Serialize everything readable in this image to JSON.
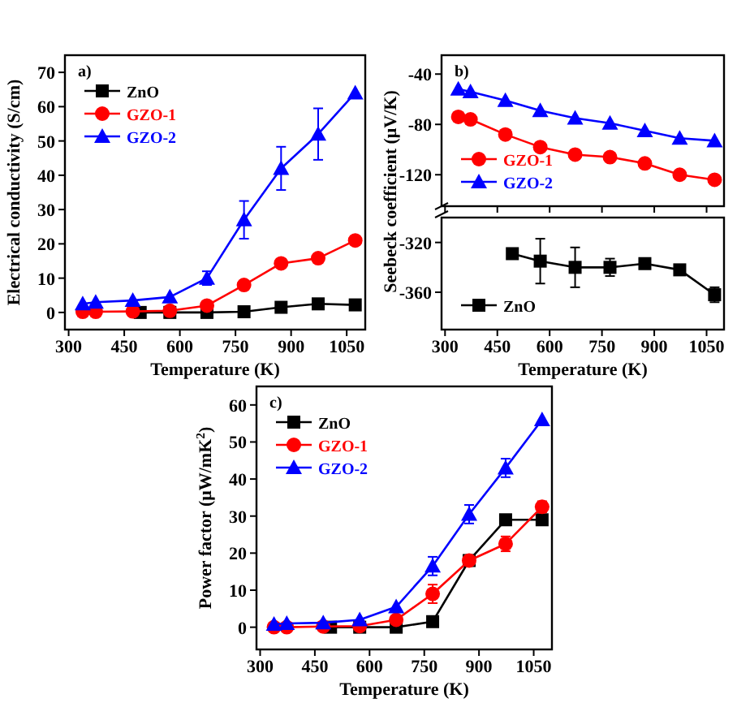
{
  "chart_data": [
    {
      "type": "line",
      "title": "a)",
      "xlabel": "Temperature (K)",
      "ylabel": "Electrical conductivity (S/cm)",
      "xlim": [
        290,
        1100
      ],
      "xticks": [
        300,
        450,
        600,
        750,
        900,
        1050
      ],
      "ylim": [
        -5,
        75
      ],
      "yticks": [
        0,
        10,
        20,
        30,
        40,
        50,
        60,
        70
      ],
      "legend": "top left",
      "series": [
        {
          "name": "ZnO",
          "color": "#000000",
          "marker": "square",
          "x": [
            493,
            573,
            673,
            773,
            873,
            973,
            1073
          ],
          "values": [
            0,
            0,
            0,
            0.2,
            1.5,
            2.5,
            2.2
          ]
        },
        {
          "name": "GZO-1",
          "color": "#ff0000",
          "marker": "circle",
          "x": [
            338,
            373,
            473,
            573,
            673,
            773,
            873,
            973,
            1073
          ],
          "values": [
            0.2,
            0.2,
            0.3,
            0.5,
            2,
            8,
            14.3,
            15.8,
            21
          ]
        },
        {
          "name": "GZO-2",
          "color": "#0000ff",
          "marker": "triangle",
          "x": [
            338,
            373,
            473,
            573,
            673,
            773,
            873,
            973,
            1073
          ],
          "values": [
            2.5,
            3,
            3.5,
            4.5,
            10,
            27,
            42,
            52,
            64
          ],
          "errors": [
            null,
            null,
            null,
            null,
            2,
            5.5,
            6.3,
            7.5,
            null
          ]
        }
      ]
    },
    {
      "type": "line",
      "title": "b)",
      "ylabel": "Seebeck coefficient (μV/K)",
      "xlim": [
        290,
        1100
      ],
      "xticks": [
        300,
        450,
        600,
        750,
        900,
        1050
      ],
      "ylim": [
        -145,
        -25
      ],
      "yticks": [
        -40,
        -80,
        -120
      ],
      "tick_labels": "y",
      "legend": "bottom left",
      "series": [
        {
          "name": "GZO-1",
          "color": "#ff0000",
          "marker": "circle",
          "x": [
            338,
            373,
            473,
            573,
            673,
            773,
            873,
            973,
            1073
          ],
          "values": [
            -74,
            -76,
            -88,
            -98,
            -104,
            -106,
            -111,
            -120,
            -124
          ]
        },
        {
          "name": "GZO-2",
          "color": "#0000ff",
          "marker": "triangle",
          "x": [
            338,
            373,
            473,
            573,
            673,
            773,
            873,
            973,
            1073
          ],
          "values": [
            -52,
            -54,
            -61,
            -69,
            -75,
            -79,
            -85,
            -91,
            -93
          ]
        }
      ]
    },
    {
      "type": "line",
      "xlabel": "Temperature (K)",
      "xlim": [
        290,
        1100
      ],
      "xticks": [
        300,
        450,
        600,
        750,
        900,
        1050
      ],
      "ylim": [
        -390,
        -300
      ],
      "yticks": [
        -320,
        -360
      ],
      "legend": "bottom left",
      "series": [
        {
          "name": "ZnO",
          "color": "#000000",
          "marker": "square",
          "x": [
            493,
            573,
            673,
            773,
            873,
            973,
            1073
          ],
          "values": [
            -329,
            -335,
            -340,
            -340,
            -337,
            -342,
            -362
          ],
          "errors": [
            null,
            18,
            16,
            7,
            null,
            null,
            6
          ]
        }
      ]
    },
    {
      "type": "line",
      "title": "c)",
      "xlabel": "Temperature (K)",
      "ylabel": "Power factor (μW/mK$^{2}$)",
      "xlim": [
        290,
        1100
      ],
      "xticks": [
        300,
        450,
        600,
        750,
        900,
        1050
      ],
      "ylim": [
        -6,
        65
      ],
      "yticks": [
        0,
        10,
        20,
        30,
        40,
        50,
        60
      ],
      "legend": "top left",
      "series": [
        {
          "name": "ZnO",
          "color": "#000000",
          "marker": "square",
          "x": [
            493,
            573,
            673,
            773,
            873,
            973,
            1073
          ],
          "values": [
            0,
            0,
            0,
            1.5,
            18,
            29,
            29
          ]
        },
        {
          "name": "GZO-1",
          "color": "#ff0000",
          "marker": "circle",
          "x": [
            338,
            373,
            473,
            573,
            673,
            773,
            873,
            973,
            1073
          ],
          "values": [
            0,
            0,
            0.2,
            0.3,
            2,
            9,
            18,
            22.5,
            32.5
          ],
          "errors": [
            null,
            null,
            null,
            null,
            null,
            2.5,
            null,
            2,
            1.5
          ]
        },
        {
          "name": "GZO-2",
          "color": "#0000ff",
          "marker": "triangle",
          "x": [
            338,
            373,
            473,
            573,
            673,
            773,
            873,
            973,
            1073
          ],
          "values": [
            0.8,
            1,
            1.2,
            2,
            5.5,
            16.5,
            30.5,
            43,
            56
          ],
          "errors": [
            null,
            null,
            null,
            null,
            null,
            2.5,
            2.5,
            2.5,
            null
          ]
        }
      ]
    }
  ]
}
